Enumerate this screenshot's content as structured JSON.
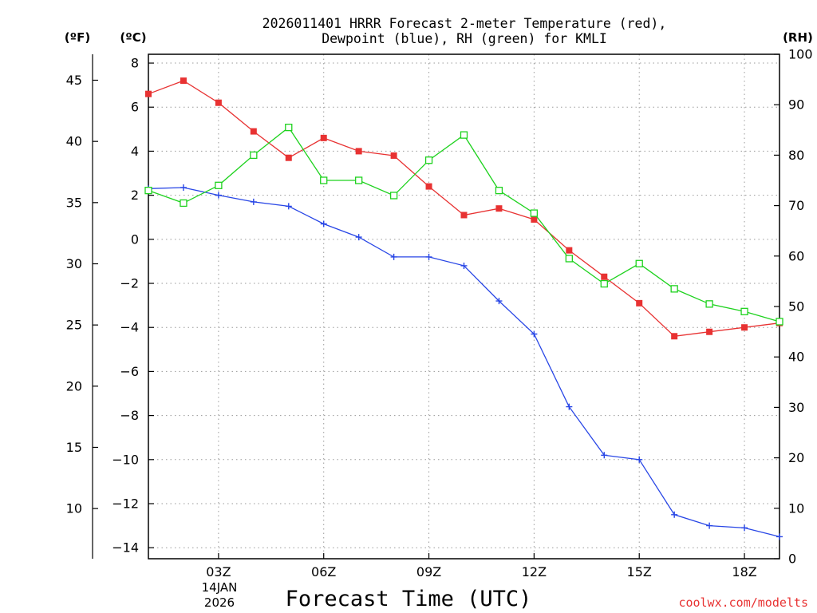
{
  "chart_data": {
    "type": "line",
    "title_line1": "2026011401 HRRR Forecast 2-meter Temperature (red),",
    "title_line2": "Dewpoint (blue), RH (green) for KMLI",
    "xlabel": "Forecast Time (UTC)",
    "unit_f": "(ºF)",
    "unit_c": "(ºC)",
    "unit_rh": "(RH)",
    "date_line1": "14JAN",
    "date_line2": "2026",
    "credit": "coolwx.com/modelts",
    "x_hours": [
      1,
      2,
      3,
      4,
      5,
      6,
      7,
      8,
      9,
      10,
      11,
      12,
      13,
      14,
      15,
      16,
      17,
      18,
      19
    ],
    "xlim": [
      1,
      19
    ],
    "x_ticks": [
      {
        "hour": 3,
        "label": "03Z"
      },
      {
        "hour": 6,
        "label": "06Z"
      },
      {
        "hour": 9,
        "label": "09Z"
      },
      {
        "hour": 12,
        "label": "12Z"
      },
      {
        "hour": 15,
        "label": "15Z"
      },
      {
        "hour": 18,
        "label": "18Z"
      }
    ],
    "c_axis": {
      "range": [
        -14.5,
        8.4
      ],
      "ticks": [
        "8",
        "6",
        "4",
        "2",
        "0",
        "−2",
        "−4",
        "−6",
        "−8",
        "−10",
        "−12",
        "−14"
      ]
    },
    "f_axis": {
      "ticks": [
        "45",
        "40",
        "35",
        "30",
        "25",
        "20",
        "15",
        "10"
      ]
    },
    "rh_axis": {
      "range": [
        0,
        100
      ],
      "ticks": [
        "100",
        "90",
        "80",
        "70",
        "60",
        "50",
        "40",
        "30",
        "20",
        "10",
        "0"
      ]
    },
    "series": [
      {
        "name": "Temperature",
        "axis": "celsius",
        "color": "#e83232",
        "marker": "filled-square",
        "values": [
          6.6,
          7.2,
          6.2,
          4.9,
          3.7,
          4.6,
          4.0,
          3.8,
          2.4,
          1.1,
          1.4,
          0.9,
          -0.5,
          -1.7,
          -2.9,
          -4.4,
          -4.2,
          -4.0,
          -3.8
        ]
      },
      {
        "name": "Dewpoint",
        "axis": "celsius",
        "color": "#2846e6",
        "marker": "plus",
        "values": [
          2.3,
          2.35,
          2.0,
          1.7,
          1.5,
          0.7,
          0.1,
          -0.8,
          -0.8,
          -1.2,
          -2.8,
          -4.3,
          -7.6,
          -9.8,
          -10.0,
          -12.5,
          -13.0,
          -13.1,
          -13.5
        ]
      },
      {
        "name": "RH",
        "axis": "rh",
        "color": "#1ed21e",
        "marker": "open-square",
        "values": [
          73,
          70.5,
          74,
          80,
          85.5,
          75,
          75,
          72,
          79,
          84,
          73,
          68.5,
          59.5,
          54.5,
          58.5,
          53.5,
          50.5,
          49,
          47
        ]
      }
    ]
  }
}
